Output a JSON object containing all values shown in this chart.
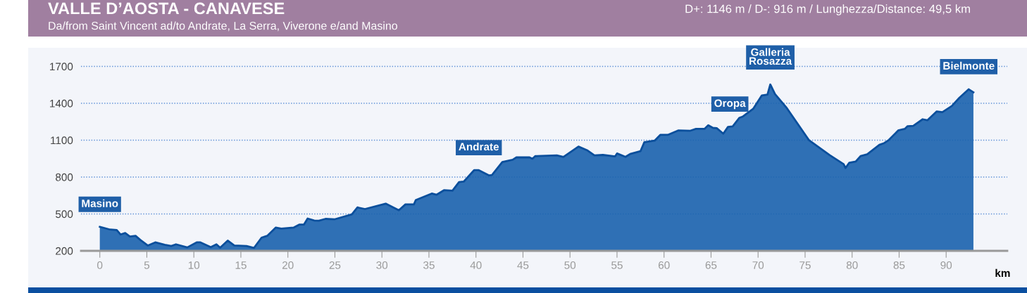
{
  "chart_data": {
    "type": "area",
    "title": "VALLE D’AOSTA - CANAVESE",
    "subtitle": "Da/from Saint Vincent ad/to Andrate, La Serra, Viverone e/and Masino",
    "xlabel": "km",
    "annotations": [
      "D+: 1146 m / D-: 916 m / Lunghezza/Distance: 49,5 km",
      {
        "text": "Masino",
        "x": 0,
        "y": 395
      },
      {
        "text": "Andrate",
        "x": 40.3,
        "y": 856
      },
      {
        "text": "Oropa",
        "x": 67,
        "y": 1210
      },
      {
        "text": "Galleria\nRosazza",
        "x": 71.3,
        "y": 1553
      },
      {
        "text": "Bielmonte",
        "x": 92.4,
        "y": 1514
      }
    ],
    "series": [
      {
        "color": "#1a62ad",
        "x": [
          0,
          1.1,
          1.8,
          2.2,
          2.7,
          3.2,
          3.8,
          4.3,
          5.1,
          5.9,
          6.9,
          7.6,
          8.1,
          9.3,
          10.3,
          10.7,
          11.8,
          12.4,
          12.8,
          13.6,
          14.3,
          15.6,
          16.4,
          17.2,
          17.8,
          18.7,
          19.3,
          20.6,
          21.2,
          21.7,
          22.1,
          22.8,
          23.3,
          24.0,
          25.0,
          26.8,
          27.4,
          28.2,
          30.4,
          31.8,
          32.5,
          33.4,
          33.6,
          35.3,
          35.8,
          36.6,
          37.5,
          38.2,
          38.7,
          39.8,
          40.3,
          41.4,
          41.7,
          42.8,
          43.9,
          44.3,
          45.7,
          46.0,
          46.3,
          48.6,
          49.3,
          50.9,
          51.8,
          52.6,
          53.5,
          54.8,
          55.0,
          55.9,
          56.4,
          57.5,
          57.9,
          59.0,
          59.6,
          60.4,
          61.5,
          62.8,
          63.4,
          64.3,
          64.7,
          65.2,
          65.6,
          66.3,
          66.8,
          67.3,
          68.0,
          68.4,
          69.5,
          70.4,
          71.0,
          71.3,
          71.8,
          73.0,
          75.4,
          77.6,
          79.1,
          79.3,
          79.7,
          80.4,
          80.9,
          81.6,
          82.9,
          83.4,
          83.9,
          84.9,
          85.6,
          85.9,
          86.5,
          87.5,
          88.0,
          89.0,
          89.6,
          90.6,
          91.4,
          92.4,
          92.9
        ],
        "values": [
          395,
          373,
          369,
          333,
          345,
          317,
          322,
          289,
          243,
          269,
          249,
          239,
          253,
          228,
          269,
          269,
          230,
          253,
          226,
          283,
          243,
          239,
          224,
          307,
          322,
          389,
          381,
          389,
          413,
          413,
          463,
          447,
          445,
          460,
          457,
          496,
          553,
          540,
          584,
          530,
          578,
          578,
          613,
          666,
          656,
          693,
          689,
          759,
          763,
          856,
          856,
          813,
          817,
          922,
          941,
          960,
          960,
          949,
          970,
          976,
          964,
          1048,
          1019,
          976,
          980,
          968,
          992,
          964,
          988,
          1011,
          1083,
          1096,
          1143,
          1143,
          1179,
          1177,
          1192,
          1192,
          1221,
          1200,
          1198,
          1153,
          1208,
          1212,
          1281,
          1293,
          1357,
          1464,
          1471,
          1553,
          1475,
          1367,
          1101,
          979,
          905,
          874,
          917,
          927,
          971,
          985,
          1062,
          1076,
          1101,
          1179,
          1192,
          1214,
          1217,
          1270,
          1262,
          1334,
          1328,
          1378,
          1444,
          1514,
          1489
        ]
      }
    ],
    "xlim": [
      -2,
      96.5
    ],
    "ylim": [
      200,
      1840
    ],
    "xticks": [
      0,
      5,
      10,
      15,
      20,
      25,
      30,
      35,
      40,
      45,
      50,
      55,
      60,
      65,
      70,
      75,
      80,
      85,
      90
    ],
    "yticks": [
      200,
      500,
      800,
      1100,
      1400,
      1700
    ],
    "grid": "y"
  }
}
